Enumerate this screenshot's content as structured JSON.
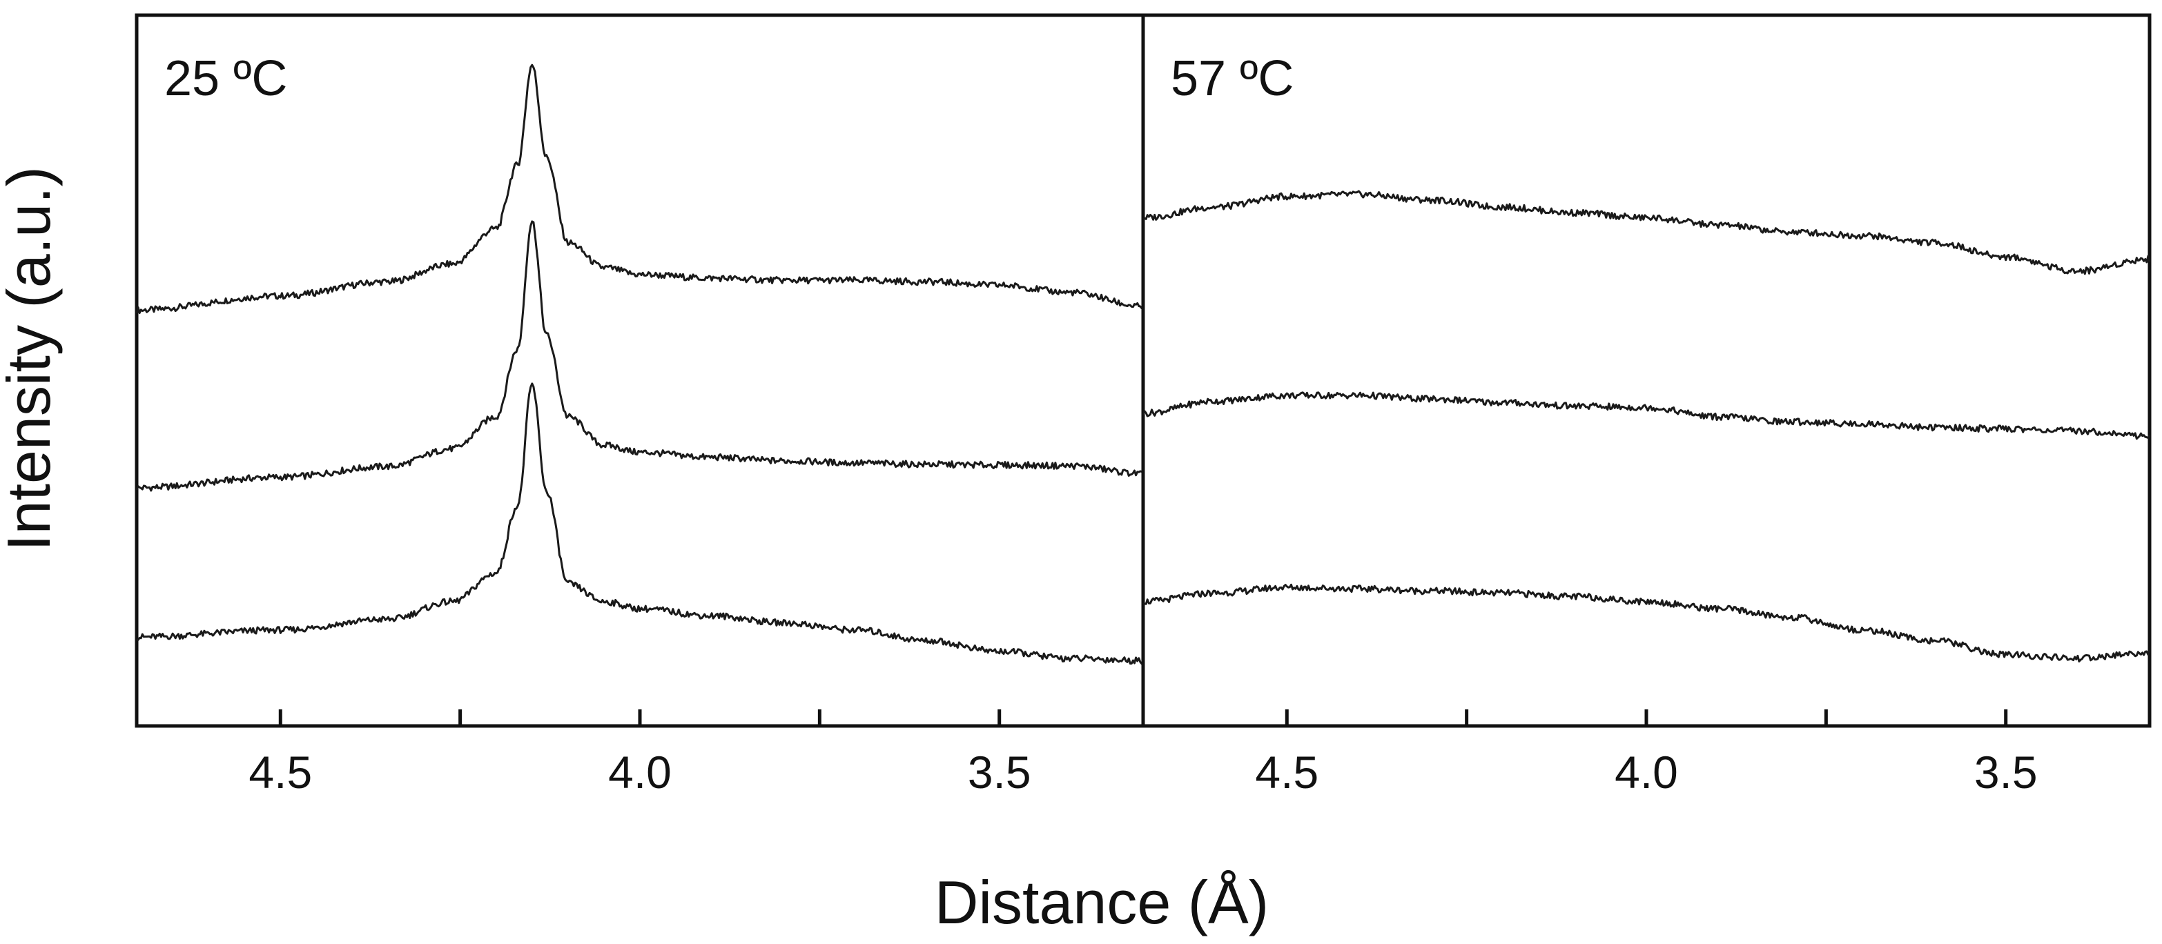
{
  "figure": {
    "ylabel": "Intensity (a.u.)",
    "xlabel": "Distance (Å)"
  },
  "chart_data": [
    {
      "type": "line",
      "title": "25 ºC",
      "xlabel": "Distance (Å)",
      "ylabel": "Intensity (a.u.)",
      "xlim": [
        4.7,
        3.3
      ],
      "x_reversed": true,
      "ylim": [
        0,
        100
      ],
      "y_ticks_shown": false,
      "grid": false,
      "legend": "none",
      "x_ticks": [
        {
          "value": 4.5,
          "label": "4.5"
        },
        {
          "value": 4.25,
          "label": ""
        },
        {
          "value": 4.0,
          "label": "4.0"
        },
        {
          "value": 3.75,
          "label": ""
        },
        {
          "value": 3.5,
          "label": "3.5"
        }
      ],
      "series": [
        {
          "x": [
            4.7,
            4.5,
            4.35,
            4.26,
            4.2,
            4.17,
            4.15,
            4.13,
            4.1,
            4.05,
            4.0,
            3.9,
            3.8,
            3.7,
            3.6,
            3.5,
            3.4,
            3.3
          ],
          "y": [
            58.5,
            60.5,
            62.5,
            65,
            70,
            79,
            93,
            80,
            68,
            64.5,
            63.5,
            63,
            62.7,
            62.7,
            62.5,
            62,
            61,
            59
          ]
        },
        {
          "x": [
            4.7,
            4.5,
            4.35,
            4.26,
            4.2,
            4.17,
            4.15,
            4.13,
            4.1,
            4.05,
            4.0,
            3.9,
            3.8,
            3.7,
            3.6,
            3.5,
            3.4,
            3.3
          ],
          "y": [
            33.5,
            35,
            36.5,
            39,
            43.5,
            53,
            71,
            55,
            43.5,
            39.5,
            38.5,
            37.8,
            37.3,
            37,
            36.8,
            36.7,
            36.6,
            35.5
          ]
        },
        {
          "x": [
            4.7,
            4.5,
            4.35,
            4.26,
            4.2,
            4.17,
            4.15,
            4.13,
            4.1,
            4.05,
            4.0,
            3.9,
            3.8,
            3.7,
            3.6,
            3.5,
            3.4,
            3.3
          ],
          "y": [
            12.5,
            13.5,
            15,
            17.5,
            21.5,
            31,
            48,
            33,
            20,
            17.5,
            16.5,
            15.5,
            14.5,
            13.5,
            12,
            10.5,
            9.5,
            9.2
          ]
        }
      ]
    },
    {
      "type": "line",
      "title": "57 ºC",
      "xlabel": "Distance (Å)",
      "ylabel": "Intensity (a.u.)",
      "xlim": [
        4.7,
        3.3
      ],
      "x_reversed": true,
      "ylim": [
        0,
        100
      ],
      "y_ticks_shown": false,
      "grid": false,
      "legend": "none",
      "x_ticks": [
        {
          "value": 4.5,
          "label": "4.5"
        },
        {
          "value": 4.25,
          "label": ""
        },
        {
          "value": 4.0,
          "label": "4.0"
        },
        {
          "value": 3.75,
          "label": ""
        },
        {
          "value": 3.5,
          "label": "3.5"
        }
      ],
      "series": [
        {
          "x": [
            4.7,
            4.6,
            4.5,
            4.4,
            4.3,
            4.2,
            4.1,
            4.0,
            3.9,
            3.8,
            3.7,
            3.6,
            3.5,
            3.4,
            3.3
          ],
          "y": [
            71.5,
            73,
            74.5,
            74.8,
            74,
            73,
            72.2,
            71.5,
            70.5,
            69.5,
            69,
            68,
            66,
            64,
            65.7
          ]
        },
        {
          "x": [
            4.7,
            4.6,
            4.5,
            4.4,
            4.3,
            4.2,
            4.1,
            4.0,
            3.9,
            3.8,
            3.7,
            3.6,
            3.5,
            3.4,
            3.3
          ],
          "y": [
            44,
            45.7,
            46.5,
            46.5,
            46,
            45.5,
            45,
            44.8,
            43.5,
            42.8,
            42.5,
            42,
            41.8,
            41.5,
            40.8
          ]
        },
        {
          "x": [
            4.7,
            4.6,
            4.5,
            4.4,
            4.3,
            4.2,
            4.1,
            4.0,
            3.9,
            3.8,
            3.7,
            3.6,
            3.5,
            3.4,
            3.3
          ],
          "y": [
            17.5,
            18.7,
            19.5,
            19.3,
            19,
            18.7,
            18.2,
            17.5,
            16.5,
            15.3,
            13.5,
            12,
            10,
            9.5,
            10.3
          ]
        }
      ]
    }
  ]
}
